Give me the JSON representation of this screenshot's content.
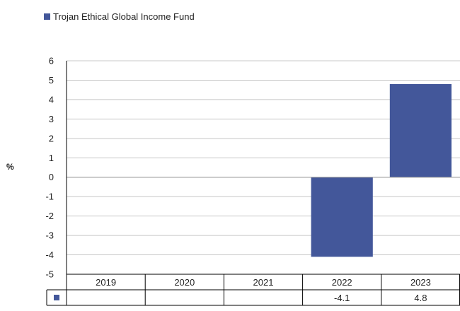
{
  "chart_data": {
    "type": "bar",
    "categories": [
      "2019",
      "2020",
      "2021",
      "2022",
      "2023"
    ],
    "series": [
      {
        "name": "Trojan Ethical Global Income Fund",
        "values": [
          null,
          null,
          null,
          -4.1,
          4.8
        ],
        "labels": [
          "",
          "",
          "",
          "-4.1",
          "4.8"
        ],
        "color": "#43579a"
      }
    ],
    "ylabel": "%",
    "ylim": [
      -5,
      6
    ],
    "yticks": [
      6,
      5,
      4,
      3,
      2,
      1,
      0,
      -1,
      -2,
      -3,
      -4,
      -5
    ],
    "grid": true,
    "legend": "top-left",
    "data_table": true
  }
}
